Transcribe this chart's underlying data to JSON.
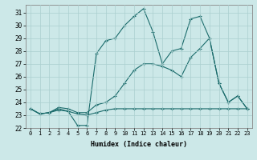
{
  "xlabel": "Humidex (Indice chaleur)",
  "background_color": "#cce8e8",
  "grid_color": "#aacfcf",
  "line_color": "#1a6b6b",
  "xlim": [
    -0.5,
    23.5
  ],
  "ylim": [
    22,
    31.6
  ],
  "yticks": [
    22,
    23,
    24,
    25,
    26,
    27,
    28,
    29,
    30,
    31
  ],
  "xticks": [
    0,
    1,
    2,
    3,
    4,
    5,
    6,
    7,
    8,
    9,
    10,
    11,
    12,
    13,
    14,
    15,
    16,
    17,
    18,
    19,
    20,
    21,
    22,
    23
  ],
  "series": [
    [
      23.5,
      23.1,
      23.2,
      23.5,
      23.3,
      22.2,
      22.2,
      27.8,
      28.8,
      29.0,
      30.0,
      30.7,
      31.3,
      29.5,
      27.0,
      28.0,
      28.2,
      30.5,
      30.7,
      29.0,
      25.5,
      24.0,
      24.5,
      23.5
    ],
    [
      23.5,
      23.1,
      23.2,
      23.6,
      23.5,
      23.2,
      23.2,
      23.8,
      24.0,
      24.5,
      25.5,
      26.5,
      27.0,
      27.0,
      26.8,
      26.5,
      26.0,
      27.5,
      28.2,
      29.0,
      25.5,
      24.0,
      24.5,
      23.5
    ],
    [
      23.5,
      23.1,
      23.2,
      23.4,
      23.3,
      23.1,
      23.0,
      23.2,
      23.4,
      23.5,
      23.5,
      23.5,
      23.5,
      23.5,
      23.5,
      23.5,
      23.5,
      23.5,
      23.5,
      23.5,
      23.5,
      23.5,
      23.5,
      23.5
    ]
  ]
}
